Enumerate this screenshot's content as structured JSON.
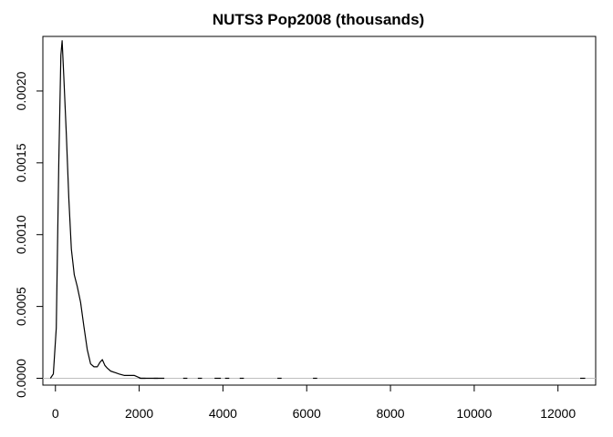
{
  "chart_data": {
    "type": "line",
    "title": "NUTS3 Pop2008 (thousands)",
    "xlabel": "",
    "ylabel": "",
    "xlim": [
      -300,
      12900
    ],
    "ylim": [
      -4.75e-05,
      0.00238
    ],
    "x_ticks": [
      0,
      2000,
      4000,
      6000,
      8000,
      10000,
      12000
    ],
    "x_tick_labels": [
      "0",
      "2000",
      "4000",
      "6000",
      "8000",
      "10000",
      "12000"
    ],
    "y_ticks": [
      0,
      0.0005,
      0.001,
      0.0015,
      0.002
    ],
    "y_tick_labels": [
      "0.0000",
      "0.0005",
      "0.0010",
      "0.0015",
      "0.0020"
    ],
    "zero_line": true,
    "grid": false,
    "legend": "none",
    "line_color": "#000000",
    "zero_line_color": "#bebebe",
    "series": [
      {
        "x": [
          -120,
          -50,
          20,
          80,
          130,
          160,
          200,
          260,
          320,
          380,
          450,
          520,
          600,
          680,
          760,
          840,
          920,
          1000,
          1060,
          1120,
          1180,
          1240,
          1320,
          1420,
          1520,
          1640,
          1760,
          1880,
          1960,
          2040,
          2200,
          2400,
          2600
        ],
        "y": [
          0.0,
          3e-05,
          0.00035,
          0.0015,
          0.00225,
          0.00235,
          0.0021,
          0.0017,
          0.00125,
          0.0009,
          0.00072,
          0.00064,
          0.00053,
          0.00036,
          0.0002,
          0.0001,
          8e-05,
          8e-05,
          0.00011,
          0.00013,
          9e-05,
          7e-05,
          5e-05,
          4e-05,
          3e-05,
          2e-05,
          2e-05,
          2e-05,
          1e-05,
          0.0,
          0.0,
          0.0,
          0.0
        ]
      }
    ],
    "rug_segments": [
      [
        2000,
        2150
      ],
      [
        2350,
        2450
      ],
      [
        3050,
        3150
      ],
      [
        3400,
        3500
      ],
      [
        3800,
        3950
      ],
      [
        4050,
        4150
      ],
      [
        4400,
        4500
      ],
      [
        5300,
        5400
      ],
      [
        6150,
        6250
      ],
      [
        12530,
        12650
      ]
    ]
  }
}
